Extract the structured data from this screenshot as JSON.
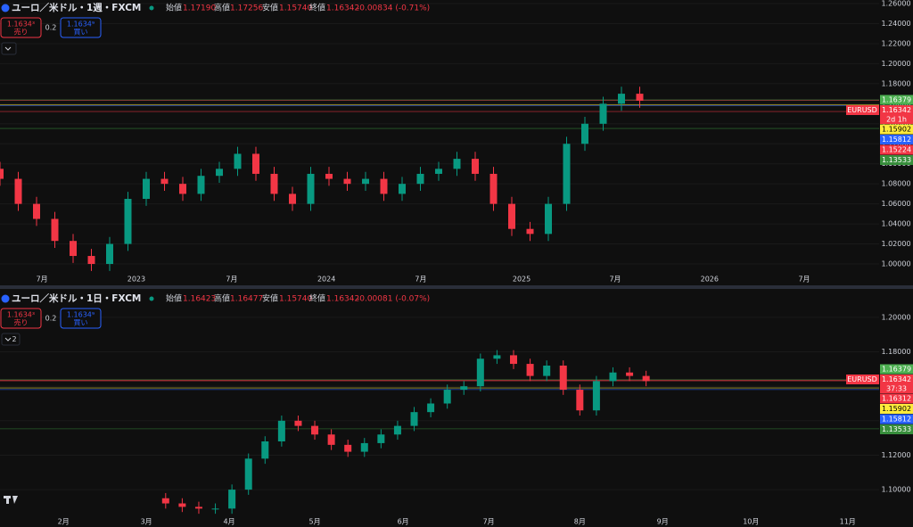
{
  "chart_data": [
    {
      "type": "candlestick",
      "title": "ユーロ／米ドル・1週・FXCM",
      "ohlc": {
        "open_label": "始値",
        "open": "1.17190",
        "high_label": "高値",
        "high": "1.17256",
        "low_label": "安値",
        "low": "1.15740",
        "close_label": "終値",
        "close": "1.16342",
        "change": "-0.00834 (-0.71%)"
      },
      "sell": {
        "price": "1.1634³",
        "label": "売り"
      },
      "spread": "0.2",
      "buy": {
        "price": "1.1634⁹",
        "label": "買い"
      },
      "symbol": "EURUSD",
      "countdown": "2d 1h",
      "x": [
        0,
        5,
        10,
        15,
        20,
        25,
        30,
        35,
        40,
        45,
        50,
        55,
        60,
        65,
        70,
        75,
        80,
        85,
        90,
        95,
        100,
        105,
        110,
        115,
        120,
        125,
        130,
        135,
        140,
        145,
        150,
        155,
        160,
        165,
        170,
        175
      ],
      "open": [
        1.095,
        1.085,
        1.06,
        1.045,
        1.023,
        1.008,
        1.0,
        1.02,
        1.065,
        1.085,
        1.08,
        1.07,
        1.088,
        1.095,
        1.11,
        1.09,
        1.07,
        1.06,
        1.09,
        1.085,
        1.08,
        1.085,
        1.07,
        1.08,
        1.09,
        1.095,
        1.105,
        1.09,
        1.06,
        1.035,
        1.03,
        1.06,
        1.12,
        1.14,
        1.16,
        1.17
      ],
      "high": [
        1.102,
        1.092,
        1.067,
        1.052,
        1.03,
        1.015,
        1.027,
        1.072,
        1.092,
        1.092,
        1.087,
        1.095,
        1.102,
        1.117,
        1.117,
        1.097,
        1.077,
        1.097,
        1.097,
        1.092,
        1.092,
        1.092,
        1.087,
        1.097,
        1.102,
        1.112,
        1.112,
        1.097,
        1.067,
        1.042,
        1.067,
        1.127,
        1.147,
        1.167,
        1.177,
        1.177
      ],
      "low": [
        1.078,
        1.053,
        1.038,
        1.016,
        1.001,
        0.993,
        0.993,
        1.013,
        1.058,
        1.073,
        1.063,
        1.063,
        1.081,
        1.088,
        1.083,
        1.063,
        1.053,
        1.053,
        1.078,
        1.073,
        1.073,
        1.063,
        1.063,
        1.073,
        1.083,
        1.088,
        1.083,
        1.053,
        1.028,
        1.023,
        1.023,
        1.053,
        1.113,
        1.133,
        1.153,
        1.156
      ],
      "close": [
        1.085,
        1.06,
        1.045,
        1.023,
        1.008,
        1.0,
        1.02,
        1.065,
        1.085,
        1.08,
        1.07,
        1.088,
        1.095,
        1.11,
        1.09,
        1.07,
        1.06,
        1.09,
        1.085,
        1.08,
        1.085,
        1.07,
        1.08,
        1.09,
        1.095,
        1.105,
        1.09,
        1.06,
        1.035,
        1.03,
        1.06,
        1.12,
        1.14,
        1.16,
        1.17,
        1.163
      ],
      "up_color": "#089981",
      "down_color": "#f23645",
      "xlim": [
        0,
        230
      ],
      "xticks": [
        {
          "value": 11.5,
          "label": "7月"
        },
        {
          "value": 37.3,
          "label": "2023"
        },
        {
          "value": 63.4,
          "label": "7月"
        },
        {
          "value": 89.3,
          "label": "2024"
        },
        {
          "value": 115.1,
          "label": "7月"
        },
        {
          "value": 142.7,
          "label": "2025"
        },
        {
          "value": 168.3,
          "label": "7月"
        },
        {
          "value": 194.1,
          "label": "2026"
        },
        {
          "value": 220,
          "label": "7月"
        }
      ],
      "ylim": [
        0.992,
        1.2636
      ],
      "yticks": [
        {
          "value": 1.0,
          "label": "1.00000"
        },
        {
          "value": 1.02,
          "label": "1.02000"
        },
        {
          "value": 1.04,
          "label": "1.04000"
        },
        {
          "value": 1.06,
          "label": "1.06000"
        },
        {
          "value": 1.08,
          "label": "1.08000"
        },
        {
          "value": 1.1,
          "label": "1.10000"
        },
        {
          "value": 1.12,
          "label": "1.12000"
        },
        {
          "value": 1.14,
          "label": "1.14000"
        },
        {
          "value": 1.16,
          "label": "1.16000"
        },
        {
          "value": 1.18,
          "label": "1.18000"
        },
        {
          "value": 1.2,
          "label": "1.20000"
        },
        {
          "value": 1.22,
          "label": "1.22000"
        },
        {
          "value": 1.24,
          "label": "1.24000"
        },
        {
          "value": 1.26,
          "label": "1.26000"
        }
      ],
      "price_labels": [
        {
          "value": 1.16379,
          "color": "#4caf50"
        },
        {
          "value": 1.16342,
          "color": "#f23645"
        },
        {
          "value": 1.15902,
          "color": "#ffeb3b"
        },
        {
          "value": 1.15812,
          "color": "#2962ff"
        },
        {
          "value": 1.15224,
          "color": "#f23645"
        },
        {
          "value": 1.13533,
          "color": "#388e3c"
        }
      ]
    },
    {
      "type": "candlestick",
      "title": "ユーロ／米ドル・1日・FXCM",
      "ohlc": {
        "open_label": "始値",
        "open": "1.16423",
        "high_label": "高値",
        "high": "1.16477",
        "low_label": "安値",
        "low": "1.15740",
        "close_label": "終値",
        "close": "1.16342",
        "change": "-0.00081 (-0.07%)"
      },
      "sell": {
        "price": "1.1634³",
        "label": "売り"
      },
      "spread": "0.2",
      "buy": {
        "price": "1.1634⁹",
        "label": "買い"
      },
      "indicator_count": 2,
      "symbol": "EURUSD",
      "countdown": "37:33",
      "x": [
        60,
        66,
        72,
        78,
        84,
        90,
        96,
        102,
        108,
        114,
        120,
        126,
        132,
        138,
        144,
        150,
        156,
        162,
        168,
        174,
        180,
        186,
        192,
        198,
        204,
        210,
        216,
        222,
        228,
        234
      ],
      "open": [
        1.095,
        1.092,
        1.09,
        1.089,
        1.089,
        1.1,
        1.118,
        1.128,
        1.14,
        1.137,
        1.132,
        1.126,
        1.122,
        1.127,
        1.132,
        1.137,
        1.145,
        1.15,
        1.158,
        1.16,
        1.176,
        1.178,
        1.173,
        1.166,
        1.172,
        1.158,
        1.146,
        1.163,
        1.168,
        1.166
      ],
      "high": [
        1.098,
        1.095,
        1.093,
        1.092,
        1.103,
        1.121,
        1.131,
        1.143,
        1.143,
        1.14,
        1.135,
        1.129,
        1.13,
        1.135,
        1.14,
        1.148,
        1.153,
        1.161,
        1.163,
        1.179,
        1.181,
        1.181,
        1.176,
        1.175,
        1.175,
        1.161,
        1.166,
        1.171,
        1.171,
        1.169
      ],
      "low": [
        1.089,
        1.087,
        1.086,
        1.086,
        1.086,
        1.097,
        1.115,
        1.125,
        1.134,
        1.129,
        1.123,
        1.119,
        1.119,
        1.124,
        1.129,
        1.134,
        1.142,
        1.147,
        1.155,
        1.157,
        1.173,
        1.17,
        1.163,
        1.163,
        1.155,
        1.143,
        1.143,
        1.16,
        1.163,
        1.16
      ],
      "close": [
        1.092,
        1.09,
        1.089,
        1.089,
        1.1,
        1.118,
        1.128,
        1.14,
        1.137,
        1.132,
        1.126,
        1.122,
        1.127,
        1.132,
        1.137,
        1.145,
        1.15,
        1.158,
        1.16,
        1.176,
        1.178,
        1.173,
        1.166,
        1.172,
        1.158,
        1.146,
        1.163,
        1.168,
        1.166,
        1.163
      ],
      "up_color": "#089981",
      "down_color": "#f23645",
      "xlim": [
        0,
        310
      ],
      "xticks": [
        {
          "value": 23,
          "label": "2月"
        },
        {
          "value": 53,
          "label": "3月"
        },
        {
          "value": 83,
          "label": "4月"
        },
        {
          "value": 114,
          "label": "5月"
        },
        {
          "value": 146,
          "label": "6月"
        },
        {
          "value": 177,
          "label": "7月"
        },
        {
          "value": 210,
          "label": "8月"
        },
        {
          "value": 240,
          "label": "9月"
        },
        {
          "value": 272,
          "label": "10月"
        },
        {
          "value": 307,
          "label": "11月"
        }
      ],
      "ylim": [
        1.084,
        1.216
      ],
      "yticks": [
        {
          "value": 1.1,
          "label": "1.10000"
        },
        {
          "value": 1.12,
          "label": "1.12000"
        },
        {
          "value": 1.14,
          "label": "1.14000"
        },
        {
          "value": 1.16,
          "label": "1.16000"
        },
        {
          "value": 1.18,
          "label": "1.18000"
        },
        {
          "value": 1.2,
          "label": "1.20000"
        }
      ],
      "price_labels": [
        {
          "value": 1.16379,
          "color": "#4caf50"
        },
        {
          "value": 1.16342,
          "color": "#f23645"
        },
        {
          "value": 1.16312,
          "color": "#f23645"
        },
        {
          "value": 1.15902,
          "color": "#ffeb3b"
        },
        {
          "value": 1.15812,
          "color": "#2962ff"
        },
        {
          "value": 1.13533,
          "color": "#388e3c"
        }
      ]
    }
  ]
}
